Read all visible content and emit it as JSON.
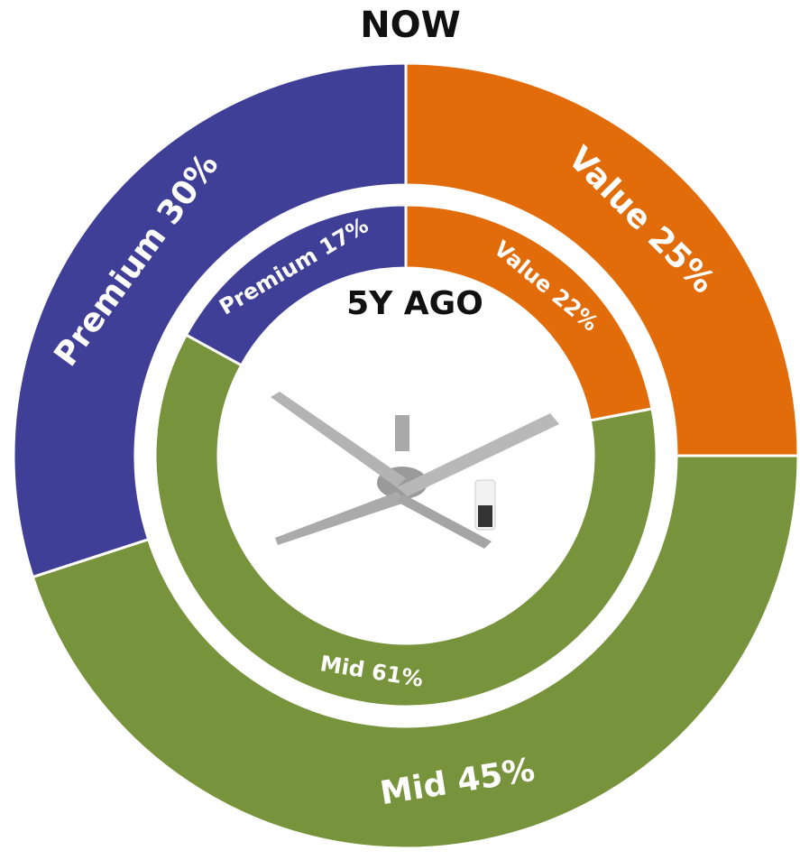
{
  "chart_data": {
    "type": "donut",
    "colors": [
      "#e36c0a",
      "#77933c",
      "#3f3f97"
    ],
    "rings": [
      {
        "name": "NOW",
        "values": [
          25,
          45,
          30
        ],
        "value_labels": [
          "Value 25%",
          "Mid 45%",
          "Premium 30%"
        ]
      },
      {
        "name": "5Y AGO",
        "values": [
          22,
          61,
          17
        ],
        "value_labels": [
          "Value 22%",
          "Mid 61%",
          "Premium 17%"
        ]
      }
    ]
  }
}
